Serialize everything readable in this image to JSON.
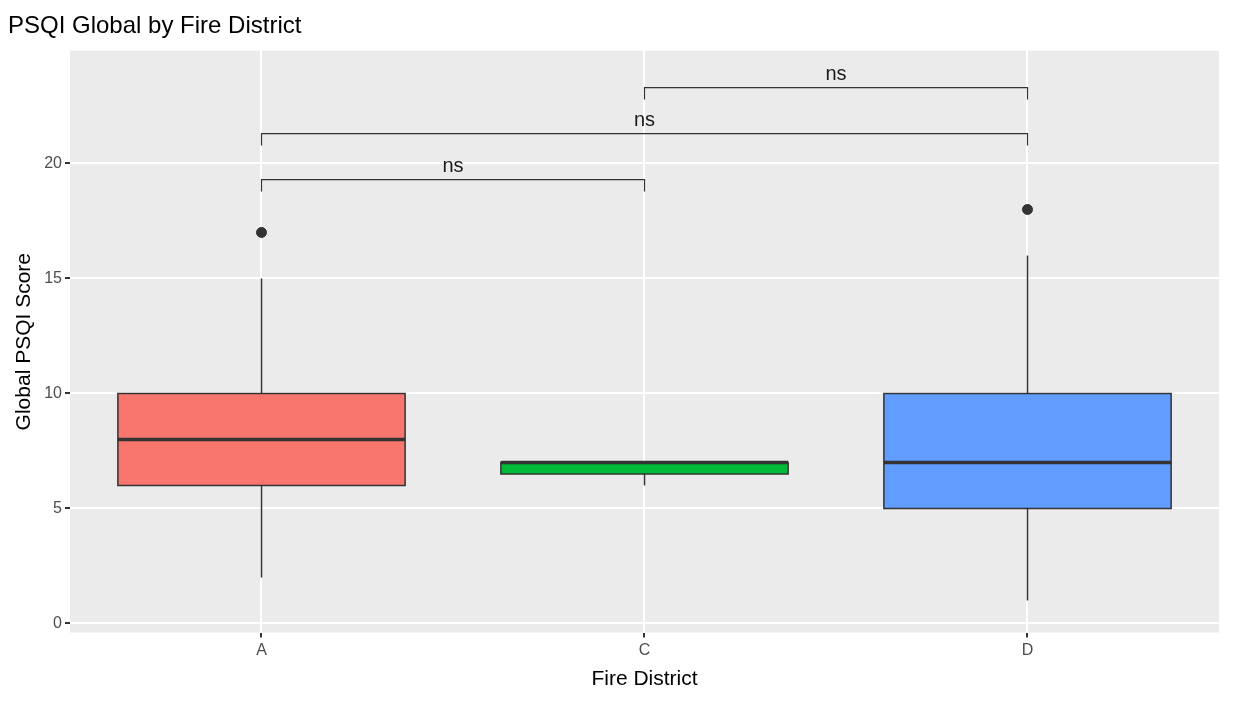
{
  "chart_data": {
    "type": "box",
    "title": "PSQI Global by Fire District",
    "xlabel": "Fire District",
    "ylabel": "Global PSQI Score",
    "categories": [
      "A",
      "C",
      "D"
    ],
    "colors": [
      "#f8766d",
      "#00ba38",
      "#619cff"
    ],
    "boxes": [
      {
        "low": 2,
        "q1": 6,
        "median": 8,
        "q3": 10,
        "high": 15,
        "outliers": [
          17
        ]
      },
      {
        "low": 6,
        "q1": 6.5,
        "median": 7,
        "q3": 7,
        "high": 7
      },
      {
        "low": 1,
        "q1": 5,
        "median": 7,
        "q3": 10,
        "high": 16,
        "outliers": [
          18
        ]
      }
    ],
    "ylim": [
      -0.4,
      24.9
    ],
    "yticks": [
      0,
      5,
      10,
      15,
      20
    ],
    "grid": true,
    "legend": false,
    "annotations": [
      "ns",
      "ns",
      "ns"
    ]
  }
}
